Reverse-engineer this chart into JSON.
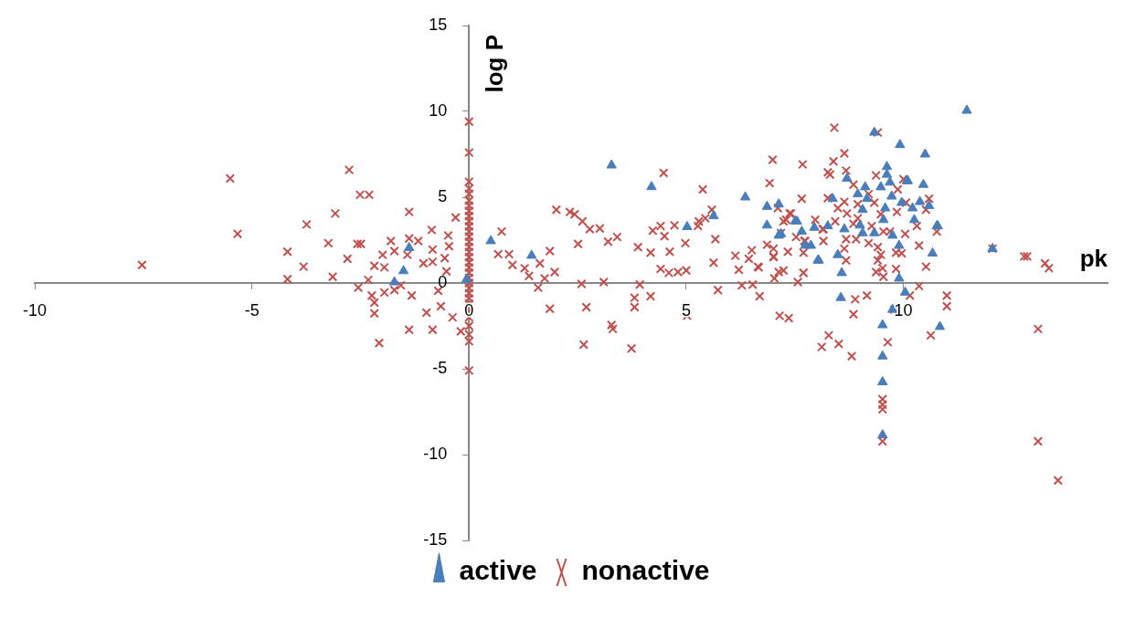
{
  "chart_data": {
    "type": "scatter",
    "xlabel": "pk",
    "ylabel": "log P",
    "xlim": [
      -10,
      14.7
    ],
    "ylim": [
      -15,
      15
    ],
    "xticks": [
      -10,
      -5,
      0,
      5,
      10
    ],
    "yticks": [
      -15,
      -10,
      -5,
      0,
      5,
      10,
      15
    ],
    "legend": "bottom",
    "series": [
      {
        "name": "active",
        "color": "#4a7ebb",
        "marker": "triangle",
        "x": [
          11.46,
          9.33,
          9.92,
          10.5,
          3.28,
          4.2,
          9.62,
          6.36,
          10.46,
          10.08,
          8.7,
          6.86,
          7.13,
          5.02,
          5.63,
          7.51,
          6.86,
          0.5,
          1.44,
          -1.38,
          -1.51,
          -1.72,
          -0.06,
          8.03,
          8.58,
          8.56,
          9.9,
          10.04,
          10.84,
          9.52,
          9.52,
          9.52,
          9.52,
          12.05,
          10.77,
          10.67,
          9.9,
          9.62,
          9.69,
          10.1,
          9.12,
          9.48,
          8.95,
          9.73,
          8.37,
          9.16,
          9.96,
          10.38,
          10.59,
          10.21,
          9.06,
          9.58,
          7.55,
          10.25,
          10.79,
          7.95,
          8.26,
          8.64,
          9.0,
          9.54,
          7.18,
          7.66,
          9.06,
          9.33,
          9.75,
          8.49,
          8.05,
          7.74,
          7.87,
          9.75,
          7.13
        ],
        "values": [
          10.05,
          8.77,
          8.05,
          7.5,
          6.86,
          5.6,
          6.77,
          5.0,
          5.73,
          5.95,
          6.09,
          4.45,
          4.59,
          3.27,
          3.9,
          3.6,
          3.36,
          2.45,
          1.6,
          2.05,
          0.7,
          0.05,
          0.2,
          1.32,
          0.59,
          -0.86,
          0.27,
          -0.55,
          -2.55,
          -2.45,
          -4.27,
          -5.77,
          -8.86,
          2.0,
          3.32,
          1.73,
          2.18,
          6.32,
          5.86,
          5.95,
          5.59,
          5.59,
          5.18,
          5.05,
          4.91,
          4.91,
          4.68,
          4.73,
          4.5,
          4.36,
          4.27,
          4.36,
          3.59,
          3.68,
          3.32,
          3.23,
          3.32,
          3.14,
          3.36,
          3.68,
          2.86,
          3.0,
          2.91,
          2.91,
          2.77,
          1.64,
          1.32,
          2.18,
          2.18,
          -1.55,
          2.77
        ]
      },
      {
        "name": "nonactive",
        "color": "#c0504d",
        "marker": "cross",
        "x": [
          -7.53,
          -5.5,
          -5.33,
          -4.18,
          -4.18,
          -3.81,
          -3.74,
          -3.24,
          -3.14,
          -3.08,
          -2.8,
          -2.76,
          -2.57,
          -2.49,
          -2.51,
          -2.3,
          -2.55,
          -2.32,
          -2.24,
          -2.18,
          -2.18,
          -2.07,
          -2.18,
          -1.99,
          -1.95,
          -1.95,
          -1.8,
          -1.72,
          -1.72,
          -1.57,
          -1.38,
          -1.38,
          -1.42,
          -1.38,
          -1.32,
          -1.17,
          -1.05,
          -0.98,
          -0.86,
          -0.84,
          -0.84,
          -0.84,
          -0.71,
          -0.65,
          -0.56,
          -0.52,
          -0.48,
          -0.38,
          -0.31,
          -0.19,
          -0.46,
          0,
          0,
          0,
          0,
          0,
          0,
          0,
          0,
          0,
          0,
          0,
          0,
          0,
          0,
          0,
          0,
          0,
          0,
          0,
          0,
          0,
          0,
          0,
          0,
          0,
          0,
          0,
          0,
          0,
          0,
          0,
          0,
          0.75,
          0.67,
          0.92,
          1.0,
          1.28,
          1.38,
          1.59,
          1.63,
          1.74,
          1.86,
          1.97,
          1.86,
          2.01,
          2.32,
          2.43,
          2.61,
          2.78,
          3.01,
          2.51,
          3.2,
          3.41,
          2.59,
          2.7,
          2.64,
          3.1,
          3.28,
          3.31,
          3.74,
          3.81,
          3.81,
          3.93,
          3.89,
          4.18,
          4.23,
          4.41,
          4.5,
          4.48,
          4.18,
          4.62,
          4.73,
          4.41,
          4.6,
          4.81,
          5.0,
          4.98,
          5.02,
          5.27,
          5.29,
          5.44,
          5.59,
          5.38,
          5.67,
          5.63,
          5.73,
          6.13,
          6.21,
          6.44,
          6.51,
          6.67,
          6.28,
          6.53,
          6.69,
          6.86,
          7.01,
          7.03,
          7.13,
          6.92,
          6.99,
          7.15,
          7.36,
          7.34,
          7.3,
          7.41,
          7.66,
          7.68,
          7.57,
          7.7,
          7.72,
          7.97,
          8.14,
          8.26,
          8.41,
          8.39,
          8.28,
          8.12,
          8.51,
          8.26,
          8.64,
          8.31,
          8.68,
          9.37,
          9.41,
          8.85,
          10.0,
          9.87,
          9.2,
          8.64,
          8.95,
          9.33,
          10.59,
          10.06,
          10.52,
          9.85,
          7.11,
          7.38,
          7.24,
          8.49,
          8.7,
          8.95,
          9.48,
          8.43,
          8.85,
          9.27,
          9.69,
          10.31,
          10.77,
          10.04,
          7.18,
          7.53,
          7.74,
          8.16,
          8.16,
          8.68,
          8.91,
          9.2,
          9.54,
          9.41,
          7.01,
          7.7,
          8.64,
          8.68,
          9.48,
          9.83,
          9.96,
          10.36,
          7.01,
          6.65,
          7.24,
          7.7,
          9.41,
          9.52,
          9.83,
          9.37,
          10.52,
          9.54,
          10.36,
          11.0,
          11.0,
          10.15,
          9.79,
          9.16,
          8.89,
          8.85,
          10.63,
          9.64,
          8.81,
          9.52,
          9.52,
          9.52,
          9.52,
          12.05,
          12.78,
          12.85,
          13.26,
          13.35,
          13.1,
          13.1,
          13.56
        ],
        "values": [
          1.05,
          6.09,
          2.86,
          1.82,
          0.23,
          0.95,
          3.41,
          2.32,
          0.36,
          4.05,
          1.41,
          6.59,
          2.27,
          2.27,
          5.14,
          5.14,
          -0.27,
          0.18,
          -0.73,
          -1.14,
          -1.77,
          -3.5,
          1.0,
          1.64,
          0.91,
          -0.55,
          2.45,
          1.86,
          -0.41,
          -0.14,
          4.14,
          2.59,
          1.64,
          -2.73,
          -0.73,
          2.45,
          1.14,
          -1.73,
          3.09,
          1.95,
          1.23,
          -2.73,
          -0.45,
          -1.36,
          1.45,
          0.68,
          2.77,
          -2.0,
          3.82,
          -2.82,
          2.14,
          9.4,
          7.6,
          5.9,
          5.5,
          5.2,
          4.8,
          4.5,
          4.2,
          3.9,
          3.6,
          3.3,
          3.0,
          2.7,
          2.4,
          2.1,
          1.8,
          1.5,
          1.2,
          0.9,
          0.6,
          0.3,
          0,
          -0.3,
          -0.6,
          -0.9,
          -1.2,
          -1.6,
          -2.0,
          -2.5,
          -3.0,
          -3.4,
          -5.1,
          3.0,
          1.68,
          1.68,
          1.05,
          0.86,
          0.41,
          -0.27,
          1.14,
          0.27,
          1.86,
          0.64,
          -1.5,
          4.27,
          4.14,
          4.0,
          3.59,
          3.14,
          3.18,
          2.27,
          2.41,
          2.68,
          -0.05,
          -1.41,
          -3.59,
          0.05,
          -2.45,
          -2.68,
          -3.82,
          -0.86,
          -1.41,
          -0.09,
          2.09,
          1.77,
          3.05,
          3.32,
          2.73,
          6.41,
          -0.77,
          1.82,
          3.36,
          0.82,
          0.59,
          0.64,
          0.73,
          2.32,
          -1.91,
          3.32,
          3.59,
          3.77,
          4.27,
          5.45,
          2.55,
          1.18,
          -0.41,
          1.59,
          0.77,
          1.41,
          1.91,
          0.91,
          -0.14,
          -0.09,
          -0.77,
          2.23,
          1.55,
          0.27,
          0.64,
          5.82,
          7.18,
          -1.91,
          -2.05,
          1.82,
          3.68,
          4.05,
          4.91,
          6.91,
          0.05,
          0.59,
          2.45,
          3.68,
          3.14,
          6.45,
          9.05,
          7.09,
          -3.05,
          -3.73,
          -3.55,
          4.95,
          7.55,
          6.32,
          6.55,
          6.27,
          8.77,
          5.73,
          6.05,
          5.45,
          5.18,
          4.73,
          4.59,
          4.68,
          4.91,
          4.68,
          4.27,
          4.14,
          4.36,
          4.05,
          3.59,
          4.36,
          4.05,
          3.77,
          4.0,
          3.59,
          3.45,
          3.32,
          3.0,
          3.32,
          3.0,
          2.86,
          2.91,
          2.68,
          2.45,
          3.14,
          2.45,
          2.55,
          2.55,
          2.32,
          3.0,
          2.09,
          2.0,
          1.77,
          2.0,
          1.32,
          1.64,
          1.77,
          1.73,
          2.18,
          1.5,
          0.95,
          0.73,
          0.59,
          1.32,
          0.86,
          0.82,
          0.64,
          0.95,
          0.36,
          -0.18,
          -0.73,
          -1.36,
          -0.73,
          -1.55,
          -0.73,
          -0.95,
          -1.82,
          -3.05,
          -3.45,
          -4.27,
          -6.77,
          -7.09,
          -7.36,
          -9.23,
          2.0,
          1.55,
          1.55,
          1.14,
          0.86,
          -2.68,
          -9.23,
          -11.5
        ]
      }
    ]
  }
}
